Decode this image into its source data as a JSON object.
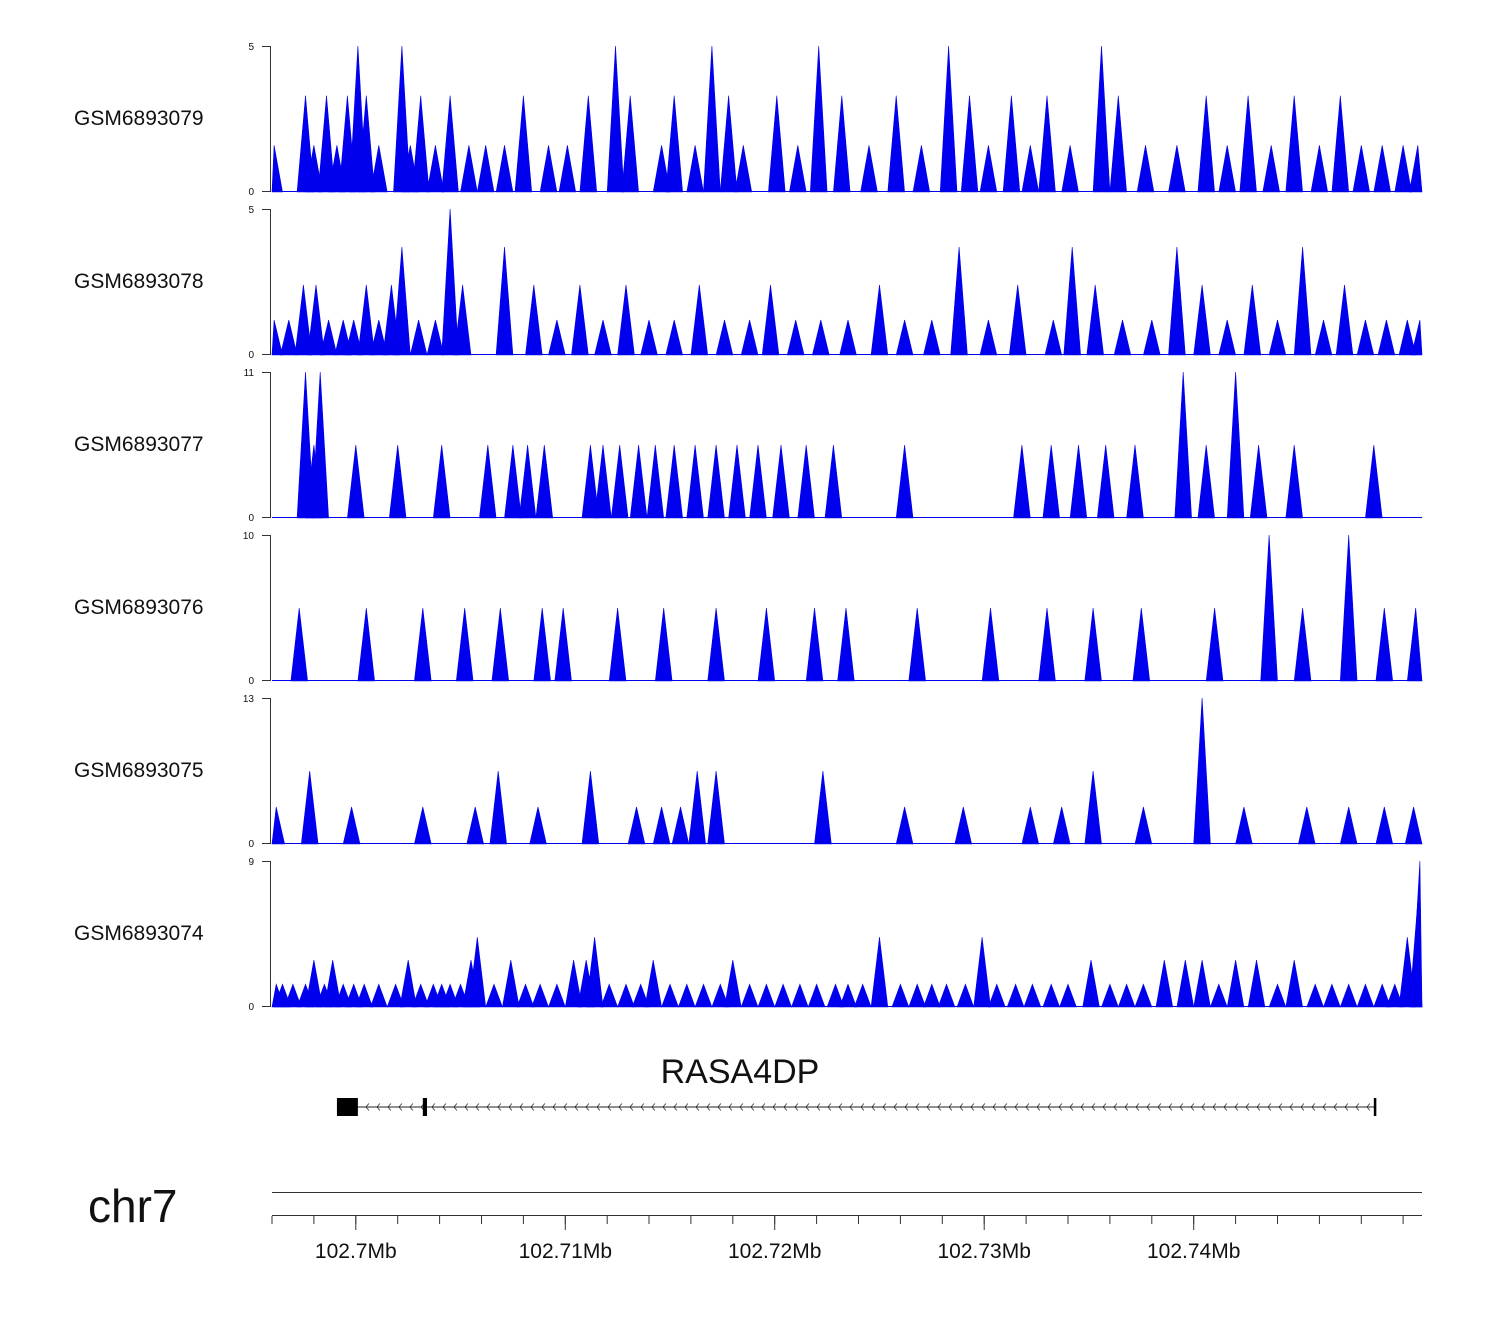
{
  "chart_data": {
    "type": "area",
    "title": "",
    "chromosome": "chr7",
    "x_unit": "Mb",
    "xlim": [
      102.696,
      102.7509
    ],
    "x_ticks": [
      102.7,
      102.71,
      102.72,
      102.73,
      102.74
    ],
    "x_tick_labels": [
      "102.7Mb",
      "102.71Mb",
      "102.72Mb",
      "102.73Mb",
      "102.74Mb"
    ],
    "fill_color": "#0000ee",
    "gene": {
      "name": "RASA4DP",
      "strand": "-",
      "start": 102.6991,
      "end": 102.7487,
      "exons": [
        [
          102.6991,
          102.7001
        ],
        [
          102.7032,
          102.7034
        ],
        [
          102.7486,
          102.7487
        ]
      ]
    },
    "tracks": [
      {
        "name": "GSM6893079",
        "ymax": 5,
        "peaks": [
          [
            102.6961,
            1.6
          ],
          [
            102.6976,
            3.3
          ],
          [
            102.698,
            1.6
          ],
          [
            102.6986,
            3.3
          ],
          [
            102.6991,
            1.6
          ],
          [
            102.6996,
            3.3
          ],
          [
            102.7001,
            5
          ],
          [
            102.7005,
            3.3
          ],
          [
            102.7011,
            1.6
          ],
          [
            102.7022,
            5
          ],
          [
            102.7026,
            1.6
          ],
          [
            102.7031,
            3.3
          ],
          [
            102.7038,
            1.6
          ],
          [
            102.7045,
            3.3
          ],
          [
            102.7054,
            1.6
          ],
          [
            102.7062,
            1.6
          ],
          [
            102.7071,
            1.6
          ],
          [
            102.708,
            3.3
          ],
          [
            102.7092,
            1.6
          ],
          [
            102.7101,
            1.6
          ],
          [
            102.7111,
            3.3
          ],
          [
            102.7124,
            5
          ],
          [
            102.7131,
            3.3
          ],
          [
            102.7146,
            1.6
          ],
          [
            102.7152,
            3.3
          ],
          [
            102.7162,
            1.6
          ],
          [
            102.717,
            5
          ],
          [
            102.7178,
            3.3
          ],
          [
            102.7185,
            1.6
          ],
          [
            102.7201,
            3.3
          ],
          [
            102.7211,
            1.6
          ],
          [
            102.7221,
            5
          ],
          [
            102.7232,
            3.3
          ],
          [
            102.7245,
            1.6
          ],
          [
            102.7258,
            3.3
          ],
          [
            102.727,
            1.6
          ],
          [
            102.7283,
            5
          ],
          [
            102.7293,
            3.3
          ],
          [
            102.7302,
            1.6
          ],
          [
            102.7313,
            3.3
          ],
          [
            102.7322,
            1.6
          ],
          [
            102.733,
            3.3
          ],
          [
            102.7341,
            1.6
          ],
          [
            102.7356,
            5
          ],
          [
            102.7364,
            3.3
          ],
          [
            102.7377,
            1.6
          ],
          [
            102.7392,
            1.6
          ],
          [
            102.7406,
            3.3
          ],
          [
            102.7416,
            1.6
          ],
          [
            102.7426,
            3.3
          ],
          [
            102.7437,
            1.6
          ],
          [
            102.7448,
            3.3
          ],
          [
            102.746,
            1.6
          ],
          [
            102.747,
            3.3
          ],
          [
            102.748,
            1.6
          ],
          [
            102.749,
            1.6
          ],
          [
            102.75,
            1.6
          ],
          [
            102.7507,
            1.6
          ]
        ]
      },
      {
        "name": "GSM6893078",
        "ymax": 5,
        "peaks": [
          [
            102.6961,
            1.2
          ],
          [
            102.6968,
            1.2
          ],
          [
            102.6975,
            2.4
          ],
          [
            102.6981,
            2.4
          ],
          [
            102.6987,
            1.2
          ],
          [
            102.6994,
            1.2
          ],
          [
            102.6999,
            1.2
          ],
          [
            102.7005,
            2.4
          ],
          [
            102.7011,
            1.2
          ],
          [
            102.7017,
            2.4
          ],
          [
            102.7022,
            3.7
          ],
          [
            102.703,
            1.2
          ],
          [
            102.7038,
            1.2
          ],
          [
            102.7045,
            5
          ],
          [
            102.7051,
            2.4
          ],
          [
            102.7071,
            3.7
          ],
          [
            102.7085,
            2.4
          ],
          [
            102.7096,
            1.2
          ],
          [
            102.7107,
            2.4
          ],
          [
            102.7118,
            1.2
          ],
          [
            102.7129,
            2.4
          ],
          [
            102.714,
            1.2
          ],
          [
            102.7152,
            1.2
          ],
          [
            102.7164,
            2.4
          ],
          [
            102.7176,
            1.2
          ],
          [
            102.7188,
            1.2
          ],
          [
            102.7198,
            2.4
          ],
          [
            102.721,
            1.2
          ],
          [
            102.7222,
            1.2
          ],
          [
            102.7235,
            1.2
          ],
          [
            102.725,
            2.4
          ],
          [
            102.7262,
            1.2
          ],
          [
            102.7275,
            1.2
          ],
          [
            102.7288,
            3.7
          ],
          [
            102.7302,
            1.2
          ],
          [
            102.7316,
            2.4
          ],
          [
            102.7333,
            1.2
          ],
          [
            102.7342,
            3.7
          ],
          [
            102.7353,
            2.4
          ],
          [
            102.7366,
            1.2
          ],
          [
            102.738,
            1.2
          ],
          [
            102.7392,
            3.7
          ],
          [
            102.7404,
            2.4
          ],
          [
            102.7416,
            1.2
          ],
          [
            102.7428,
            2.4
          ],
          [
            102.744,
            1.2
          ],
          [
            102.7452,
            3.7
          ],
          [
            102.7462,
            1.2
          ],
          [
            102.7472,
            2.4
          ],
          [
            102.7482,
            1.2
          ],
          [
            102.7492,
            1.2
          ],
          [
            102.7502,
            1.2
          ],
          [
            102.7508,
            1.2
          ]
        ]
      },
      {
        "name": "GSM6893077",
        "ymax": 11,
        "peaks": [
          [
            102.6976,
            11
          ],
          [
            102.698,
            5.5
          ],
          [
            102.6983,
            11
          ],
          [
            102.7,
            5.5
          ],
          [
            102.702,
            5.5
          ],
          [
            102.7041,
            5.5
          ],
          [
            102.7063,
            5.5
          ],
          [
            102.7075,
            5.5
          ],
          [
            102.7082,
            5.5
          ],
          [
            102.709,
            5.5
          ],
          [
            102.7112,
            5.5
          ],
          [
            102.7118,
            5.5
          ],
          [
            102.7126,
            5.5
          ],
          [
            102.7135,
            5.5
          ],
          [
            102.7143,
            5.5
          ],
          [
            102.7152,
            5.5
          ],
          [
            102.7162,
            5.5
          ],
          [
            102.7172,
            5.5
          ],
          [
            102.7182,
            5.5
          ],
          [
            102.7192,
            5.5
          ],
          [
            102.7203,
            5.5
          ],
          [
            102.7215,
            5.5
          ],
          [
            102.7228,
            5.5
          ],
          [
            102.7262,
            5.5
          ],
          [
            102.7318,
            5.5
          ],
          [
            102.7332,
            5.5
          ],
          [
            102.7345,
            5.5
          ],
          [
            102.7358,
            5.5
          ],
          [
            102.7372,
            5.5
          ],
          [
            102.7395,
            11
          ],
          [
            102.7406,
            5.5
          ],
          [
            102.742,
            11
          ],
          [
            102.7431,
            5.5
          ],
          [
            102.7448,
            5.5
          ],
          [
            102.7486,
            5.5
          ]
        ]
      },
      {
        "name": "GSM6893076",
        "ymax": 10,
        "peaks": [
          [
            102.6973,
            5
          ],
          [
            102.7005,
            5
          ],
          [
            102.7032,
            5
          ],
          [
            102.7052,
            5
          ],
          [
            102.7069,
            5
          ],
          [
            102.7089,
            5
          ],
          [
            102.7099,
            5
          ],
          [
            102.7125,
            5
          ],
          [
            102.7147,
            5
          ],
          [
            102.7172,
            5
          ],
          [
            102.7196,
            5
          ],
          [
            102.7219,
            5
          ],
          [
            102.7234,
            5
          ],
          [
            102.7268,
            5
          ],
          [
            102.7303,
            5
          ],
          [
            102.733,
            5
          ],
          [
            102.7352,
            5
          ],
          [
            102.7375,
            5
          ],
          [
            102.741,
            5
          ],
          [
            102.7436,
            10
          ],
          [
            102.7452,
            5
          ],
          [
            102.7474,
            10
          ],
          [
            102.7491,
            5
          ],
          [
            102.7506,
            5
          ]
        ]
      },
      {
        "name": "GSM6893075",
        "ymax": 13,
        "peaks": [
          [
            102.6962,
            3.3
          ],
          [
            102.6978,
            6.5
          ],
          [
            102.6998,
            3.3
          ],
          [
            102.7032,
            3.3
          ],
          [
            102.7057,
            3.3
          ],
          [
            102.7068,
            6.5
          ],
          [
            102.7087,
            3.3
          ],
          [
            102.7112,
            6.5
          ],
          [
            102.7134,
            3.3
          ],
          [
            102.7146,
            3.3
          ],
          [
            102.7155,
            3.3
          ],
          [
            102.7163,
            6.5
          ],
          [
            102.7172,
            6.5
          ],
          [
            102.7223,
            6.5
          ],
          [
            102.7262,
            3.3
          ],
          [
            102.729,
            3.3
          ],
          [
            102.7322,
            3.3
          ],
          [
            102.7337,
            3.3
          ],
          [
            102.7352,
            6.5
          ],
          [
            102.7376,
            3.3
          ],
          [
            102.7404,
            13
          ],
          [
            102.7424,
            3.3
          ],
          [
            102.7454,
            3.3
          ],
          [
            102.7474,
            3.3
          ],
          [
            102.7491,
            3.3
          ],
          [
            102.7505,
            3.3
          ]
        ]
      },
      {
        "name": "GSM6893074",
        "ymax": 9,
        "peaks": [
          [
            102.6962,
            1.4
          ],
          [
            102.6965,
            1.4
          ],
          [
            102.697,
            1.4
          ],
          [
            102.6976,
            1.4
          ],
          [
            102.698,
            2.9
          ],
          [
            102.6985,
            1.4
          ],
          [
            102.6989,
            2.9
          ],
          [
            102.6994,
            1.4
          ],
          [
            102.6999,
            1.4
          ],
          [
            102.7004,
            1.4
          ],
          [
            102.7011,
            1.4
          ],
          [
            102.7019,
            1.4
          ],
          [
            102.7025,
            2.9
          ],
          [
            102.7031,
            1.4
          ],
          [
            102.7037,
            1.4
          ],
          [
            102.7041,
            1.4
          ],
          [
            102.7045,
            1.4
          ],
          [
            102.705,
            1.4
          ],
          [
            102.7055,
            2.9
          ],
          [
            102.7058,
            4.3
          ],
          [
            102.7066,
            1.4
          ],
          [
            102.7074,
            2.9
          ],
          [
            102.7081,
            1.4
          ],
          [
            102.7088,
            1.4
          ],
          [
            102.7096,
            1.4
          ],
          [
            102.7104,
            2.9
          ],
          [
            102.711,
            2.9
          ],
          [
            102.7114,
            4.3
          ],
          [
            102.7121,
            1.4
          ],
          [
            102.7129,
            1.4
          ],
          [
            102.7136,
            1.4
          ],
          [
            102.7142,
            2.9
          ],
          [
            102.715,
            1.4
          ],
          [
            102.7158,
            1.4
          ],
          [
            102.7166,
            1.4
          ],
          [
            102.7174,
            1.4
          ],
          [
            102.718,
            2.9
          ],
          [
            102.7188,
            1.4
          ],
          [
            102.7196,
            1.4
          ],
          [
            102.7204,
            1.4
          ],
          [
            102.7212,
            1.4
          ],
          [
            102.722,
            1.4
          ],
          [
            102.7229,
            1.4
          ],
          [
            102.7235,
            1.4
          ],
          [
            102.7242,
            1.4
          ],
          [
            102.725,
            4.3
          ],
          [
            102.726,
            1.4
          ],
          [
            102.7268,
            1.4
          ],
          [
            102.7275,
            1.4
          ],
          [
            102.7282,
            1.4
          ],
          [
            102.7291,
            1.4
          ],
          [
            102.7299,
            4.3
          ],
          [
            102.7306,
            1.4
          ],
          [
            102.7315,
            1.4
          ],
          [
            102.7323,
            1.4
          ],
          [
            102.7332,
            1.4
          ],
          [
            102.734,
            1.4
          ],
          [
            102.7351,
            2.9
          ],
          [
            102.736,
            1.4
          ],
          [
            102.7368,
            1.4
          ],
          [
            102.7376,
            1.4
          ],
          [
            102.7386,
            2.9
          ],
          [
            102.7396,
            2.9
          ],
          [
            102.7404,
            2.9
          ],
          [
            102.7412,
            1.4
          ],
          [
            102.742,
            2.9
          ],
          [
            102.743,
            2.9
          ],
          [
            102.744,
            1.4
          ],
          [
            102.7448,
            2.9
          ],
          [
            102.7458,
            1.4
          ],
          [
            102.7466,
            1.4
          ],
          [
            102.7474,
            1.4
          ],
          [
            102.7482,
            1.4
          ],
          [
            102.749,
            1.4
          ],
          [
            102.7496,
            1.4
          ],
          [
            102.7502,
            4.3
          ],
          [
            102.7507,
            6.5
          ],
          [
            102.7508,
            9
          ]
        ]
      }
    ]
  }
}
